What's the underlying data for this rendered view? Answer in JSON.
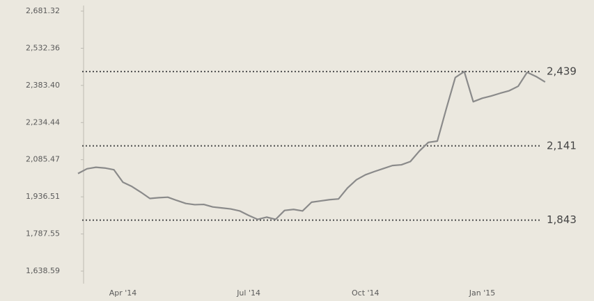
{
  "chart_data": {
    "type": "line",
    "categories": [
      null,
      null,
      null,
      null,
      null,
      "Apr '14",
      null,
      null,
      null,
      null,
      null,
      null,
      null,
      null,
      null,
      null,
      null,
      null,
      null,
      "Jul '14",
      null,
      null,
      null,
      null,
      null,
      null,
      null,
      null,
      null,
      null,
      null,
      null,
      "Oct '14",
      null,
      null,
      null,
      null,
      null,
      null,
      null,
      null,
      null,
      null,
      null,
      null,
      "Jan '15",
      null,
      null,
      null,
      null,
      null,
      null,
      null
    ],
    "series": [
      {
        "color": "#8a8a8a",
        "values": [
          2030,
          2049,
          2055,
          2052,
          2045,
          1995,
          1978,
          1955,
          1930,
          1933,
          1935,
          1922,
          1910,
          1905,
          1906,
          1896,
          1892,
          1888,
          1880,
          1862,
          1846,
          1855,
          1846,
          1882,
          1886,
          1880,
          1915,
          1920,
          1925,
          1928,
          1972,
          2005,
          2025,
          2038,
          2050,
          2062,
          2065,
          2078,
          2120,
          2155,
          2160,
          2290,
          2415,
          2439,
          2318,
          2332,
          2341,
          2352,
          2362,
          2380,
          2436,
          2419,
          2397
        ]
      }
    ],
    "ylim": [
      1638.59,
      2681.32
    ],
    "yticks": [
      {
        "value": 1638.59,
        "label": "1,638.59"
      },
      {
        "value": 1787.55,
        "label": "1,787.55"
      },
      {
        "value": 1936.51,
        "label": "1,936.51"
      },
      {
        "value": 2085.47,
        "label": "2,085.47"
      },
      {
        "value": 2234.44,
        "label": "2,234.44"
      },
      {
        "value": 2383.4,
        "label": "2,383.40"
      },
      {
        "value": 2532.36,
        "label": "2,532.36"
      },
      {
        "value": 2681.32,
        "label": "2,681.32"
      }
    ],
    "reference_lines": [
      {
        "value": 2439,
        "label": "2,439"
      },
      {
        "value": 2141,
        "label": "2,141"
      },
      {
        "value": 1843,
        "label": "1,843"
      }
    ]
  }
}
